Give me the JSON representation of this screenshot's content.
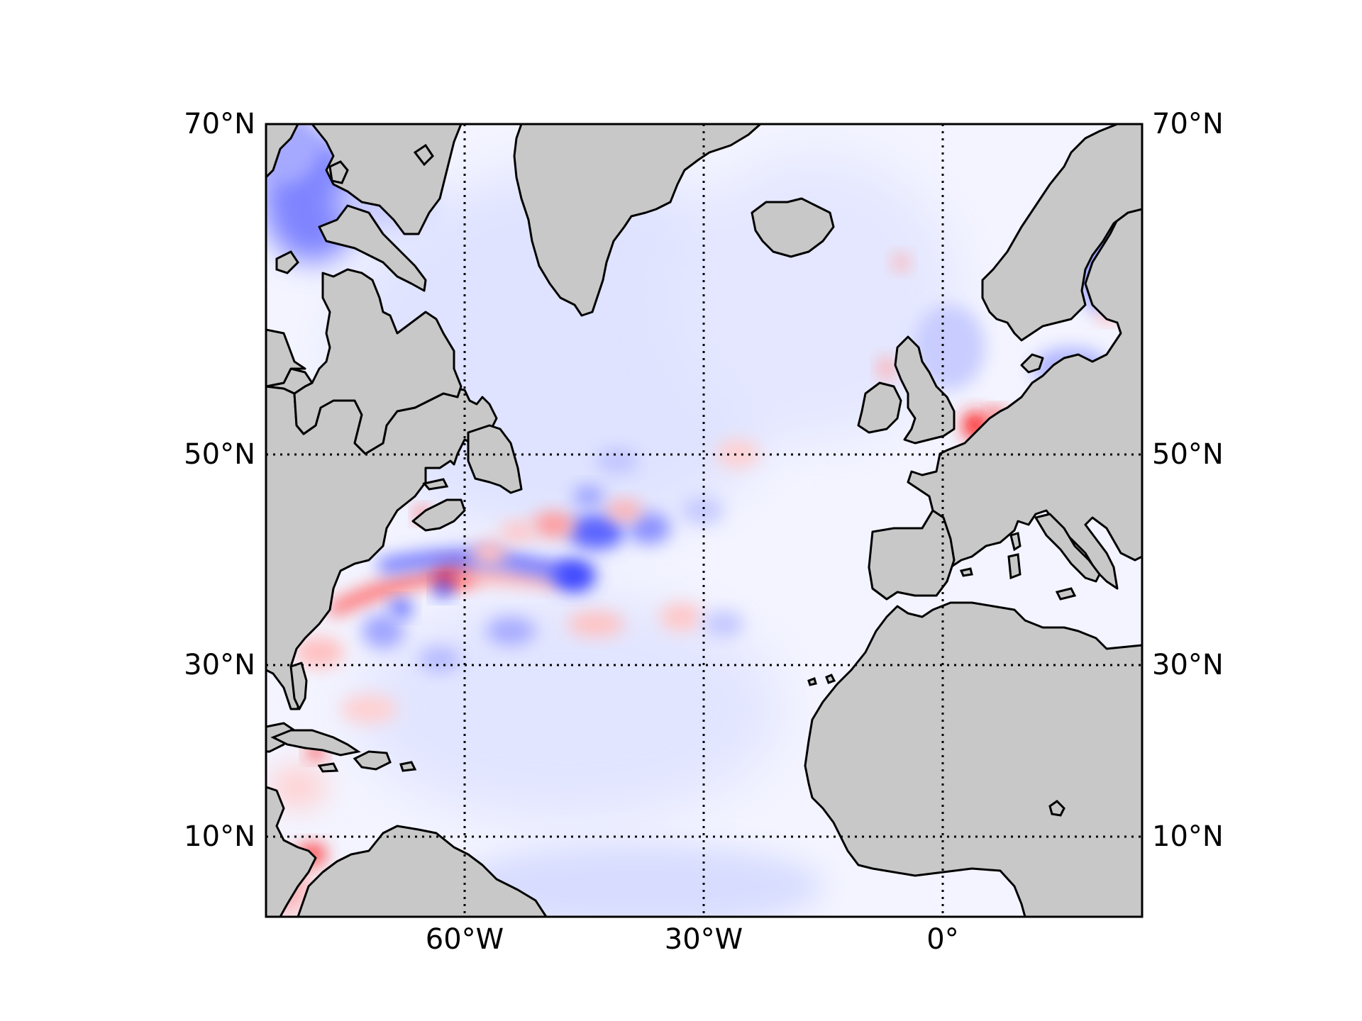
{
  "map": {
    "projection": "cylindrical",
    "lon_range": [
      -85,
      25
    ],
    "lat_range": [
      0,
      70
    ],
    "colormap": "bwr",
    "colors": {
      "land": "#c8c8c8",
      "ocean_base": "#f2f3ff",
      "positive": "#ff0000",
      "negative": "#0000ff",
      "coastline": "#000000"
    },
    "meridians": [
      {
        "lon": -60,
        "label": "60°W"
      },
      {
        "lon": -30,
        "label": "30°W"
      },
      {
        "lon": 0,
        "label": "0°"
      }
    ],
    "parallels": [
      {
        "lat": 10,
        "label": "10°N"
      },
      {
        "lat": 30,
        "label": "30°N"
      },
      {
        "lat": 50,
        "label": "50°N"
      },
      {
        "lat": 70,
        "label": "70°N"
      }
    ],
    "features": [
      {
        "name": "gulf-stream-band",
        "sign": "positive",
        "lon": [
          -76,
          -60
        ],
        "lat": [
          35,
          41
        ]
      },
      {
        "name": "gulf-stream-negative-band",
        "sign": "negative",
        "lon": [
          -62,
          -45
        ],
        "lat": [
          37,
          41
        ]
      },
      {
        "name": "labrador-sea-anomaly",
        "sign": "negative",
        "lon": [
          -85,
          -70
        ],
        "lat": [
          58,
          70
        ]
      },
      {
        "name": "north-sea-coast-anomaly",
        "sign": "positive",
        "lon": [
          3,
          8
        ],
        "lat": [
          51,
          54
        ]
      }
    ]
  }
}
